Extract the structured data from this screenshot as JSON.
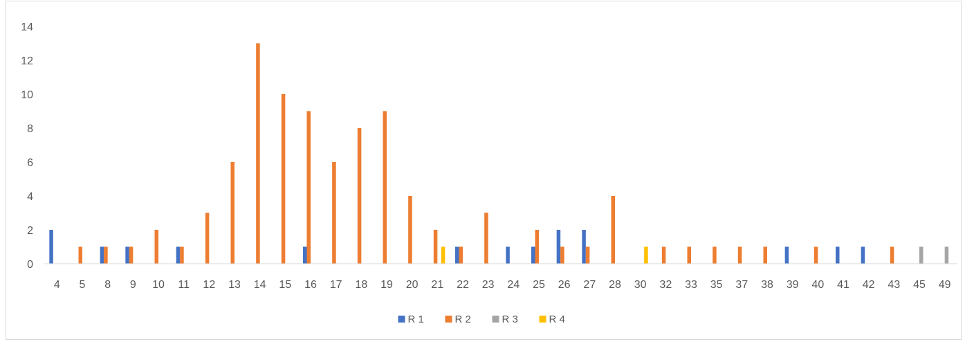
{
  "chart_data": {
    "type": "bar",
    "title": "",
    "xlabel": "",
    "ylabel": "",
    "ylim": [
      0,
      14
    ],
    "yticks": [
      0,
      2,
      4,
      6,
      8,
      10,
      12,
      14
    ],
    "grid": false,
    "legend_position": "bottom",
    "categories": [
      "4",
      "5",
      "8",
      "9",
      "10",
      "11",
      "12",
      "13",
      "14",
      "15",
      "16",
      "17",
      "18",
      "19",
      "20",
      "21",
      "22",
      "23",
      "24",
      "25",
      "26",
      "27",
      "28",
      "30",
      "32",
      "33",
      "35",
      "37",
      "38",
      "39",
      "40",
      "41",
      "42",
      "43",
      "45",
      "49"
    ],
    "series": [
      {
        "name": "R 1",
        "color": "#4472C4",
        "values": [
          2,
          0,
          1,
          1,
          0,
          1,
          0,
          0,
          0,
          0,
          1,
          0,
          0,
          0,
          0,
          0,
          1,
          0,
          1,
          1,
          2,
          2,
          0,
          0,
          0,
          0,
          0,
          0,
          0,
          1,
          0,
          1,
          1,
          0,
          0,
          0
        ]
      },
      {
        "name": "R 2",
        "color": "#ED7D31",
        "values": [
          0,
          1,
          1,
          1,
          2,
          1,
          3,
          6,
          13,
          10,
          9,
          6,
          8,
          9,
          4,
          2,
          1,
          3,
          0,
          2,
          1,
          1,
          4,
          0,
          1,
          1,
          1,
          1,
          1,
          0,
          1,
          0,
          0,
          1,
          0,
          0
        ]
      },
      {
        "name": "R 3",
        "color": "#A5A5A5",
        "values": [
          0,
          0,
          0,
          0,
          0,
          0,
          0,
          0,
          0,
          0,
          0,
          0,
          0,
          0,
          0,
          0,
          0,
          0,
          0,
          0,
          0,
          0,
          0,
          0,
          0,
          0,
          0,
          0,
          0,
          0,
          0,
          0,
          0,
          0,
          1,
          1
        ]
      },
      {
        "name": "R 4",
        "color": "#FFC000",
        "values": [
          0,
          0,
          0,
          0,
          0,
          0,
          0,
          0,
          0,
          0,
          0,
          0,
          0,
          0,
          0,
          1,
          0,
          0,
          0,
          0,
          0,
          0,
          0,
          1,
          0,
          0,
          0,
          0,
          0,
          0,
          0,
          0,
          0,
          0,
          0,
          0
        ]
      }
    ]
  }
}
